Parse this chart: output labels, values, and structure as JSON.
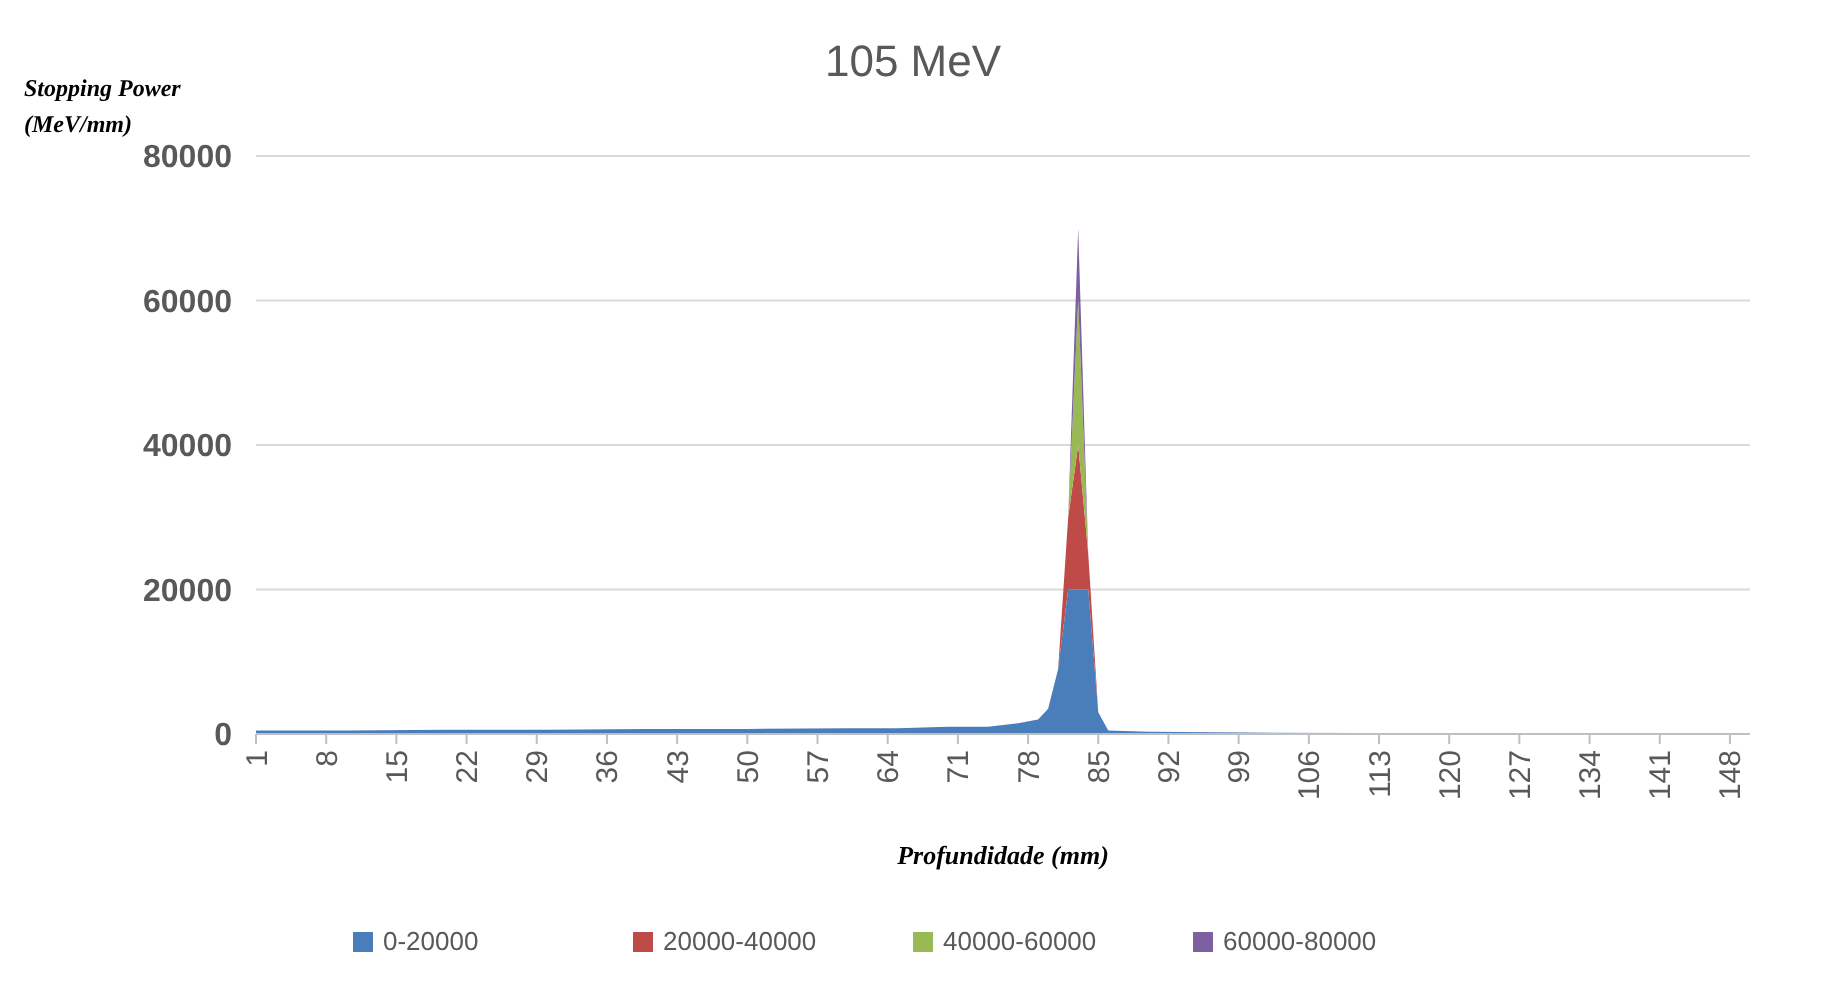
{
  "chart_data": {
    "type": "area",
    "stacked": true,
    "title": "105 MeV",
    "ylabel": "Stopping Power (MeV/mm)",
    "xlabel": "Profundidade (mm)",
    "x": [
      1,
      10,
      20,
      30,
      40,
      50,
      60,
      65,
      70,
      74,
      77,
      79,
      80,
      81,
      82,
      83,
      84,
      85,
      86,
      90,
      100,
      120,
      150
    ],
    "series": [
      {
        "name": "0-20000",
        "color": "#4a7ebb",
        "values": [
          500,
          500,
          600,
          600,
          700,
          700,
          800,
          800,
          1000,
          1000,
          1500,
          2000,
          3500,
          9000,
          20000,
          20000,
          20000,
          3000,
          500,
          300,
          200,
          100,
          0
        ]
      },
      {
        "name": "20000-40000",
        "color": "#be4b48",
        "values": [
          0,
          0,
          0,
          0,
          0,
          0,
          0,
          0,
          0,
          0,
          0,
          0,
          0,
          0,
          10000,
          20000,
          5000,
          0,
          0,
          0,
          0,
          0,
          0
        ]
      },
      {
        "name": "40000-60000",
        "color": "#98b954",
        "values": [
          0,
          0,
          0,
          0,
          0,
          0,
          0,
          0,
          0,
          0,
          0,
          0,
          0,
          0,
          0,
          20000,
          0,
          0,
          0,
          0,
          0,
          0,
          0
        ]
      },
      {
        "name": "60000-80000",
        "color": "#7d60a0",
        "values": [
          0,
          0,
          0,
          0,
          0,
          0,
          0,
          0,
          0,
          0,
          0,
          0,
          0,
          0,
          0,
          10000,
          0,
          0,
          0,
          0,
          0,
          0,
          0
        ]
      }
    ],
    "xlim": [
      1,
      150
    ],
    "xticks": [
      1,
      8,
      15,
      22,
      29,
      36,
      43,
      50,
      57,
      64,
      71,
      78,
      85,
      92,
      99,
      106,
      113,
      120,
      127,
      134,
      141,
      148
    ],
    "ylim": [
      0,
      80000
    ],
    "yticks": [
      0,
      20000,
      40000,
      60000,
      80000
    ],
    "grid": "y",
    "legend": "bottom"
  }
}
